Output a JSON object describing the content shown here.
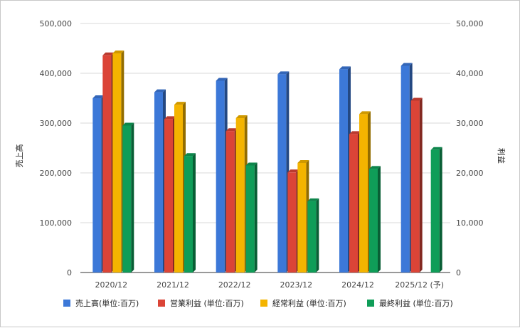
{
  "chart_data": {
    "type": "bar",
    "categories": [
      "2020/12",
      "2021/12",
      "2022/12",
      "2023/12",
      "2024/12",
      "2025/12 (予)"
    ],
    "left_axis": {
      "title": "売上高",
      "ylim": [
        0,
        500000
      ],
      "ticks": [
        "0",
        "100,000",
        "200,000",
        "300,000",
        "400,000",
        "500,000"
      ]
    },
    "right_axis": {
      "title": "利益",
      "ylim": [
        0,
        50000
      ],
      "ticks": [
        "0",
        "10,000",
        "20,000",
        "30,000",
        "40,000",
        "50,000"
      ]
    },
    "series": [
      {
        "name": "売上高(単位:百万)",
        "axis": "left",
        "color": "#3c78d8",
        "values": [
          350000,
          362000,
          385000,
          398000,
          408000,
          415000
        ]
      },
      {
        "name": "営業利益 (単位:百万)",
        "axis": "right",
        "color": "#db4437",
        "values": [
          43600,
          30800,
          28400,
          20100,
          27800,
          34500
        ]
      },
      {
        "name": "経常利益 (単位:百万)",
        "axis": "right",
        "color": "#f4b400",
        "values": [
          44000,
          33700,
          31000,
          22000,
          31800,
          null
        ]
      },
      {
        "name": "最終利益 (単位:百万)",
        "axis": "right",
        "color": "#0f9d58",
        "values": [
          29500,
          23400,
          21500,
          14300,
          20800,
          24600
        ]
      }
    ],
    "grid": true,
    "legend_position": "bottom"
  }
}
